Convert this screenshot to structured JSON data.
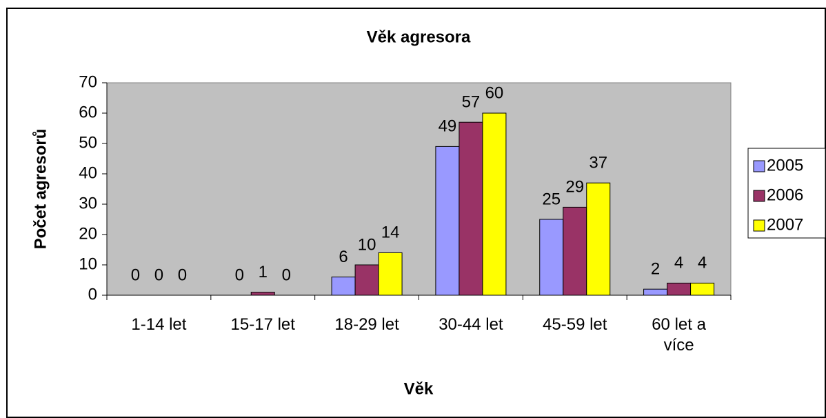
{
  "chart_data": {
    "type": "bar",
    "title": "Věk agresora",
    "x_label": "Věk",
    "y_label": "Počet agresorů",
    "categories": [
      "1-14 let",
      "15-17 let",
      "18-29 let",
      "30-44 let",
      "45-59 let",
      "60 let a více"
    ],
    "series": [
      {
        "name": "2005",
        "color": "#9999ff",
        "values": [
          0,
          0,
          6,
          49,
          25,
          2
        ]
      },
      {
        "name": "2006",
        "color": "#993366",
        "values": [
          0,
          1,
          10,
          57,
          29,
          4
        ]
      },
      {
        "name": "2007",
        "color": "#ffff00",
        "values": [
          0,
          0,
          14,
          60,
          37,
          4
        ]
      }
    ],
    "ylim": [
      0,
      70
    ],
    "yticks": [
      0,
      10,
      20,
      30,
      40,
      50,
      60,
      70
    ],
    "grid": false,
    "legend": "right"
  }
}
